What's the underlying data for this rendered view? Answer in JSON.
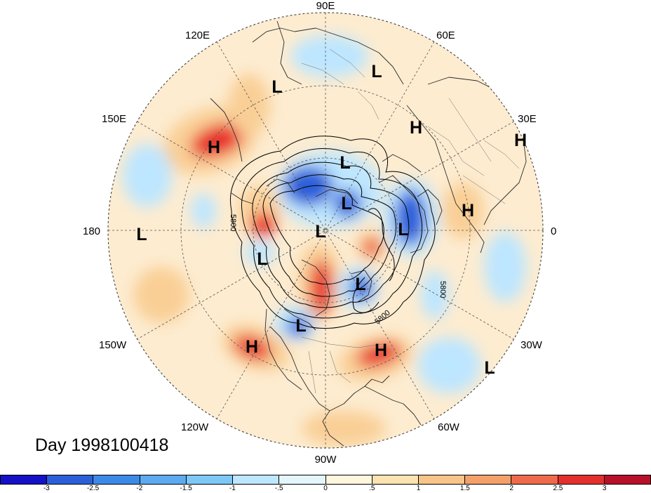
{
  "map": {
    "projection": "north polar stereographic",
    "longitude_labels": [
      "90E",
      "60E",
      "30E",
      "0",
      "30W",
      "60W",
      "90W",
      "120W",
      "150W",
      "180",
      "150E",
      "120E"
    ],
    "contour_labels": [
      "5800",
      "5800",
      "5800"
    ],
    "pressure_centers": [
      "L",
      "L",
      "H",
      "H",
      "H",
      "L",
      "L",
      "L",
      "H",
      "L",
      "L",
      "L",
      "L",
      "L",
      "H",
      "H",
      "L"
    ],
    "colors": {
      "strong_negative": "#2b5fd9",
      "weak_negative": "#bde6ff",
      "neutral": "#fff6de",
      "weak_positive": "#f9cf96",
      "strong_positive": "#e8302c"
    }
  },
  "title": "Day 1998100418",
  "colorbar": {
    "ticks": [
      "-3",
      "-2.5",
      "-2",
      "-1.5",
      "-1",
      "-.5",
      "0",
      ".5",
      "1",
      "1.5",
      "2",
      "2.5",
      "3"
    ],
    "colors": [
      "#1511c7",
      "#2b5fd9",
      "#3b8ae8",
      "#5eaaf0",
      "#7ec8f7",
      "#bde6ff",
      "#e4f6fc",
      "#fff6de",
      "#fbe3b0",
      "#f7c489",
      "#f3a06b",
      "#ee6a4b",
      "#e3302c",
      "#b8102a"
    ]
  }
}
